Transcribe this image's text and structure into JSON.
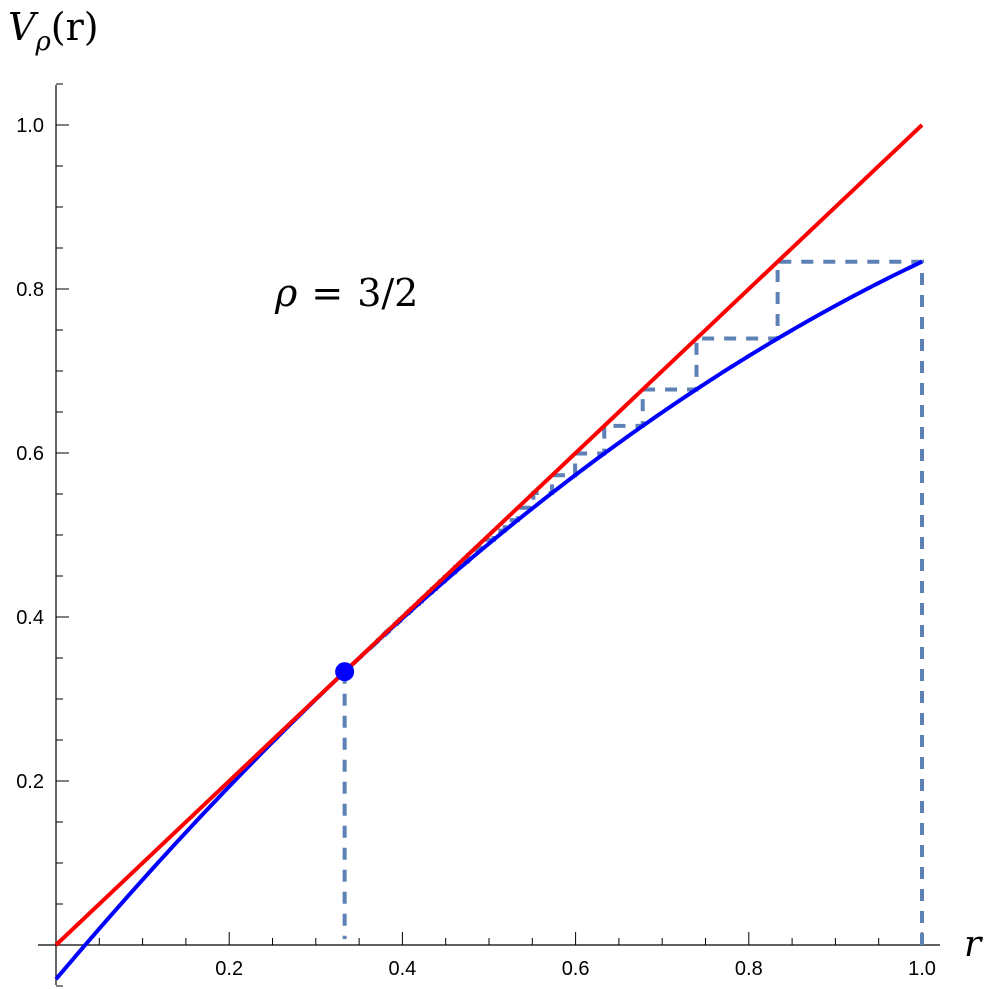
{
  "chart_data": {
    "type": "line",
    "title": "",
    "xlabel": "r",
    "ylabel": "V_ρ(r)",
    "ylabel_parts": {
      "main": "V",
      "sub": "ρ",
      "arg": "(r)"
    },
    "annotation": "ρ = 3/2",
    "annotation_parts": {
      "lhs": "ρ",
      "eq": "=",
      "rhs": "3/2"
    },
    "xlim": [
      0,
      1.0
    ],
    "ylim": [
      -0.042,
      1.04
    ],
    "x_ticks": [
      0.2,
      0.4,
      0.6,
      0.8,
      1.0
    ],
    "x_tick_labels": [
      "0.2",
      "0.4",
      "0.6",
      "0.8",
      "1.0"
    ],
    "y_ticks": [
      0.2,
      0.4,
      0.6,
      0.8,
      1.0
    ],
    "y_tick_labels": [
      "0.2",
      "0.4",
      "0.6",
      "0.8",
      "1.0"
    ],
    "grid": false,
    "legend": null,
    "series": [
      {
        "name": "identity line y = r",
        "color": "#ff0000",
        "style": "solid",
        "x": [
          0,
          1.0
        ],
        "y": [
          0,
          1.0
        ]
      },
      {
        "name": "V_ρ(r)",
        "color": "#0000ff",
        "style": "solid",
        "x": [
          0,
          0.033,
          0.1,
          0.2,
          0.3,
          0.3333,
          0.4,
          0.5,
          0.6,
          0.7,
          0.8,
          0.9,
          1.0
        ],
        "y": [
          -0.0417,
          0.0,
          0.0796,
          0.1933,
          0.2996,
          0.3333,
          0.3983,
          0.4896,
          0.5733,
          0.6496,
          0.7183,
          0.7796,
          0.8333
        ]
      },
      {
        "name": "cobweb iteration",
        "color": "#5e81b5",
        "style": "dashed",
        "iterates": [
          1.0,
          0.8333,
          0.7396,
          0.6775,
          0.6331,
          0.5994,
          0.5728,
          0.5512,
          0.5333,
          0.5182,
          0.5053,
          0.4941,
          0.4843,
          0.4756,
          0.4679,
          0.4609,
          0.4546,
          0.4489,
          0.4436,
          0.4387,
          0.4342,
          0.43,
          0.4261,
          0.4225,
          0.419,
          0.4158,
          0.4128,
          0.4099,
          0.4072,
          0.4046,
          0.4022,
          0.3998,
          0.3976,
          0.3955,
          0.3934,
          0.3915,
          0.3896,
          0.3878,
          0.3861,
          0.3844,
          0.3828,
          0.3812,
          0.3797,
          0.3782,
          0.3768,
          0.3754,
          0.3741,
          0.3728,
          0.3716,
          0.3703
        ]
      },
      {
        "name": "fixed point drop line",
        "color": "#5e81b5",
        "style": "dashed",
        "x": [
          0.3333,
          0.3333
        ],
        "y": [
          0,
          0.3333
        ]
      }
    ],
    "points": [
      {
        "name": "fixed point",
        "x": 0.3333,
        "y": 0.3333,
        "color": "#0000ff"
      }
    ]
  }
}
